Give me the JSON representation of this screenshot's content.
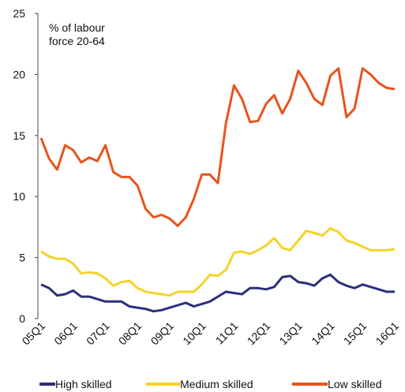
{
  "chart_data": {
    "type": "line",
    "ylabel": [
      "% of labour",
      "force 20-64"
    ],
    "categories": [
      "05Q1",
      null,
      null,
      null,
      "06Q1",
      null,
      null,
      null,
      "07Q1",
      null,
      null,
      null,
      "08Q1",
      null,
      null,
      null,
      "09Q1",
      null,
      null,
      null,
      "10Q1",
      null,
      null,
      null,
      "11Q1",
      null,
      null,
      null,
      "12Q1",
      null,
      null,
      null,
      "13Q1",
      null,
      null,
      null,
      "14Q1",
      null,
      null,
      null,
      "15Q1",
      null,
      null,
      null,
      "16Q1"
    ],
    "series": [
      {
        "name": "High skilled",
        "color": "#2b2f7a",
        "values": [
          2.8,
          2.5,
          1.9,
          2.0,
          2.3,
          1.8,
          1.8,
          1.6,
          1.4,
          1.4,
          1.4,
          1.0,
          0.9,
          0.8,
          0.6,
          0.7,
          0.9,
          1.1,
          1.3,
          1.0,
          1.2,
          1.4,
          1.8,
          2.2,
          2.1,
          2.0,
          2.5,
          2.5,
          2.4,
          2.6,
          3.4,
          3.5,
          3.0,
          2.9,
          2.7,
          3.3,
          3.6,
          3.0,
          2.7,
          2.5,
          2.8,
          2.6,
          2.4,
          2.2,
          2.2
        ]
      },
      {
        "name": "Medium skilled",
        "color": "#f5d327",
        "values": [
          5.5,
          5.1,
          4.9,
          4.9,
          4.5,
          3.7,
          3.8,
          3.7,
          3.3,
          2.7,
          3.0,
          3.1,
          2.5,
          2.2,
          2.1,
          2.0,
          1.9,
          2.2,
          2.2,
          2.2,
          2.8,
          3.6,
          3.5,
          4.0,
          5.4,
          5.5,
          5.3,
          5.6,
          6.0,
          6.6,
          5.8,
          5.6,
          6.4,
          7.2,
          7.0,
          6.8,
          7.4,
          7.1,
          6.4,
          6.2,
          5.9,
          5.6,
          5.6,
          5.6,
          5.7
        ]
      },
      {
        "name": "Low skilled",
        "color": "#e8541c",
        "values": [
          14.8,
          13.1,
          12.2,
          14.2,
          13.8,
          12.8,
          13.2,
          12.9,
          14.2,
          12.0,
          11.6,
          11.6,
          10.9,
          9.0,
          8.3,
          8.5,
          8.2,
          7.6,
          8.3,
          9.8,
          11.8,
          11.8,
          11.1,
          16.0,
          19.1,
          18.0,
          16.1,
          16.2,
          17.6,
          18.3,
          16.8,
          18.0,
          20.3,
          19.3,
          18.0,
          17.5,
          19.9,
          20.5,
          16.5,
          17.2,
          20.5,
          20.0,
          19.3,
          18.9,
          18.8
        ]
      }
    ],
    "ylim": [
      0,
      25
    ],
    "yticks": [
      0,
      5,
      10,
      15,
      20,
      25
    ],
    "legend": "bottom"
  }
}
